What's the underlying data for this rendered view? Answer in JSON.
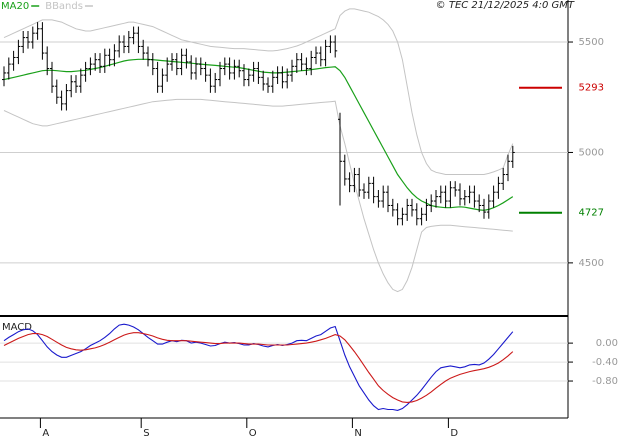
{
  "chart_data": {
    "type": "ohlc",
    "source": "© TEC 21/12/2025 4:0 GMT",
    "categories": [
      null,
      null,
      null,
      null,
      null,
      null,
      null,
      null,
      "A",
      null,
      null,
      null,
      null,
      null,
      null,
      null,
      null,
      null,
      null,
      null,
      null,
      null,
      null,
      null,
      null,
      null,
      null,
      null,
      null,
      "S",
      null,
      null,
      null,
      null,
      null,
      null,
      null,
      null,
      null,
      null,
      null,
      null,
      null,
      null,
      null,
      null,
      null,
      null,
      null,
      null,
      null,
      "O",
      null,
      null,
      null,
      null,
      null,
      null,
      null,
      null,
      null,
      null,
      null,
      null,
      null,
      null,
      null,
      null,
      null,
      null,
      null,
      null,
      null,
      "N",
      null,
      null,
      null,
      null,
      null,
      null,
      null,
      null,
      null,
      null,
      null,
      null,
      null,
      null,
      null,
      null,
      null,
      null,
      null,
      "D",
      null,
      null,
      null,
      null,
      null,
      null,
      null,
      null,
      null,
      null,
      null,
      null,
      null
    ],
    "bar_color": "#000000",
    "open": [
      5330,
      5360,
      5400,
      5430,
      5480,
      5520,
      5500,
      5540,
      5560,
      5450,
      5380,
      5300,
      5250,
      5220,
      5280,
      5320,
      5300,
      5350,
      5380,
      5400,
      5420,
      5390,
      5440,
      5420,
      5460,
      5500,
      5480,
      5520,
      5540,
      5480,
      5450,
      5420,
      5380,
      5300,
      5350,
      5400,
      5420,
      5380,
      5440,
      5410,
      5360,
      5400,
      5380,
      5350,
      5300,
      5330,
      5380,
      5400,
      5360,
      5390,
      5370,
      5330,
      5350,
      5380,
      5340,
      5310,
      5300,
      5340,
      5360,
      5320,
      5350,
      5390,
      5420,
      5400,
      5380,
      5430,
      5450,
      5420,
      5480,
      5500,
      5150,
      4960,
      4880,
      4850,
      4900,
      4830,
      4820,
      4860,
      4800,
      4780,
      4820,
      4760,
      4740,
      4700,
      4720,
      4760,
      4740,
      4700,
      4720,
      4760,
      4780,
      4800,
      4820,
      4780,
      4840,
      4830,
      4790,
      4800,
      4820,
      4780,
      4760,
      4730,
      4780,
      4820,
      4860,
      4900,
      4960
    ],
    "high": [
      5390,
      5430,
      5460,
      5510,
      5550,
      5550,
      5570,
      5590,
      5590,
      5480,
      5410,
      5330,
      5280,
      5310,
      5350,
      5350,
      5380,
      5410,
      5430,
      5450,
      5450,
      5470,
      5470,
      5490,
      5530,
      5530,
      5550,
      5570,
      5570,
      5510,
      5480,
      5450,
      5410,
      5380,
      5430,
      5450,
      5450,
      5470,
      5470,
      5440,
      5430,
      5430,
      5410,
      5380,
      5360,
      5410,
      5430,
      5430,
      5420,
      5420,
      5400,
      5380,
      5410,
      5410,
      5370,
      5340,
      5370,
      5390,
      5390,
      5380,
      5420,
      5450,
      5450,
      5430,
      5460,
      5480,
      5480,
      5510,
      5530,
      5530,
      5180,
      4990,
      4910,
      4930,
      4930,
      4860,
      4890,
      4890,
      4830,
      4850,
      4850,
      4790,
      4770,
      4750,
      4790,
      4790,
      4770,
      4750,
      4790,
      4810,
      4830,
      4850,
      4850,
      4870,
      4870,
      4860,
      4830,
      4850,
      4850,
      4810,
      4790,
      4810,
      4850,
      4890,
      4930,
      4990,
      5030
    ],
    "low": [
      5300,
      5330,
      5370,
      5400,
      5450,
      5470,
      5470,
      5510,
      5420,
      5350,
      5270,
      5220,
      5190,
      5190,
      5250,
      5270,
      5270,
      5320,
      5350,
      5370,
      5360,
      5360,
      5390,
      5390,
      5430,
      5450,
      5450,
      5490,
      5450,
      5420,
      5390,
      5350,
      5270,
      5270,
      5320,
      5370,
      5350,
      5350,
      5380,
      5330,
      5330,
      5350,
      5320,
      5270,
      5270,
      5300,
      5350,
      5330,
      5330,
      5340,
      5300,
      5300,
      5320,
      5310,
      5280,
      5270,
      5270,
      5310,
      5290,
      5290,
      5320,
      5360,
      5370,
      5350,
      5350,
      5400,
      5390,
      5390,
      5450,
      5430,
      4760,
      4850,
      4820,
      4820,
      4800,
      4790,
      4790,
      4770,
      4750,
      4750,
      4730,
      4710,
      4670,
      4670,
      4690,
      4710,
      4670,
      4670,
      4690,
      4730,
      4750,
      4770,
      4750,
      4750,
      4800,
      4760,
      4760,
      4770,
      4750,
      4730,
      4700,
      4700,
      4750,
      4790,
      4830,
      4870,
      4930
    ],
    "close": [
      5360,
      5400,
      5430,
      5480,
      5520,
      5500,
      5540,
      5560,
      5450,
      5380,
      5300,
      5250,
      5220,
      5280,
      5320,
      5300,
      5350,
      5380,
      5400,
      5420,
      5390,
      5440,
      5420,
      5460,
      5500,
      5480,
      5520,
      5540,
      5480,
      5450,
      5420,
      5380,
      5300,
      5350,
      5400,
      5420,
      5380,
      5440,
      5410,
      5360,
      5400,
      5380,
      5350,
      5300,
      5330,
      5380,
      5400,
      5360,
      5390,
      5370,
      5330,
      5350,
      5380,
      5340,
      5310,
      5300,
      5340,
      5360,
      5320,
      5350,
      5390,
      5420,
      5400,
      5380,
      5430,
      5450,
      5420,
      5480,
      5500,
      5460,
      4960,
      4880,
      4850,
      4900,
      4830,
      4820,
      4860,
      4800,
      4780,
      4820,
      4760,
      4740,
      4700,
      4720,
      4760,
      4740,
      4700,
      4720,
      4760,
      4780,
      4800,
      4820,
      4780,
      4840,
      4830,
      4790,
      4800,
      4820,
      4780,
      4760,
      4730,
      4780,
      4820,
      4860,
      4900,
      4960,
      5000
    ],
    "ylim": [
      4264,
      5645
    ],
    "yticks": [
      4500,
      5000,
      5500
    ],
    "grid": true,
    "overlays": [
      {
        "name": "MA20",
        "color": "#1aa01a",
        "values": [
          5330,
          5335,
          5340,
          5345,
          5350,
          5355,
          5360,
          5365,
          5370,
          5372,
          5372,
          5370,
          5368,
          5366,
          5366,
          5368,
          5370,
          5372,
          5376,
          5380,
          5384,
          5390,
          5396,
          5402,
          5408,
          5414,
          5418,
          5420,
          5422,
          5422,
          5422,
          5420,
          5418,
          5416,
          5414,
          5412,
          5410,
          5408,
          5406,
          5404,
          5402,
          5400,
          5398,
          5396,
          5394,
          5392,
          5390,
          5388,
          5386,
          5384,
          5380,
          5376,
          5372,
          5368,
          5364,
          5362,
          5360,
          5360,
          5362,
          5364,
          5366,
          5368,
          5370,
          5372,
          5375,
          5378,
          5381,
          5384,
          5386,
          5388,
          5370,
          5340,
          5300,
          5260,
          5220,
          5180,
          5140,
          5100,
          5060,
          5020,
          4980,
          4940,
          4900,
          4870,
          4840,
          4815,
          4795,
          4780,
          4770,
          4760,
          4755,
          4752,
          4750,
          4750,
          4752,
          4754,
          4752,
          4748,
          4744,
          4740,
          4738,
          4742,
          4750,
          4760,
          4772,
          4786,
          4800
        ]
      },
      {
        "name": "BBands",
        "color": "#c4c4c4",
        "upper": [
          5520,
          5530,
          5540,
          5550,
          5560,
          5570,
          5580,
          5590,
          5600,
          5600,
          5600,
          5595,
          5590,
          5580,
          5570,
          5560,
          5555,
          5550,
          5550,
          5555,
          5560,
          5565,
          5570,
          5575,
          5580,
          5585,
          5590,
          5590,
          5585,
          5580,
          5575,
          5570,
          5560,
          5550,
          5540,
          5530,
          5520,
          5510,
          5505,
          5500,
          5495,
          5490,
          5485,
          5480,
          5478,
          5476,
          5474,
          5472,
          5470,
          5470,
          5470,
          5468,
          5466,
          5464,
          5462,
          5460,
          5460,
          5462,
          5466,
          5470,
          5476,
          5482,
          5490,
          5500,
          5510,
          5520,
          5530,
          5540,
          5550,
          5560,
          5620,
          5640,
          5650,
          5650,
          5645,
          5640,
          5635,
          5625,
          5615,
          5600,
          5580,
          5550,
          5500,
          5420,
          5300,
          5180,
          5080,
          5000,
          4950,
          4920,
          4910,
          4905,
          4900,
          4900,
          4900,
          4900,
          4900,
          4900,
          4900,
          4900,
          4900,
          4905,
          4912,
          4920,
          4930,
          4990,
          5040
        ],
        "lower": [
          5190,
          5180,
          5170,
          5160,
          5150,
          5140,
          5130,
          5125,
          5120,
          5120,
          5125,
          5130,
          5135,
          5140,
          5145,
          5150,
          5155,
          5160,
          5165,
          5170,
          5175,
          5180,
          5185,
          5190,
          5195,
          5200,
          5205,
          5210,
          5215,
          5220,
          5225,
          5230,
          5232,
          5234,
          5236,
          5238,
          5240,
          5240,
          5240,
          5240,
          5240,
          5240,
          5238,
          5236,
          5234,
          5232,
          5230,
          5228,
          5226,
          5224,
          5222,
          5220,
          5218,
          5216,
          5214,
          5212,
          5210,
          5210,
          5210,
          5212,
          5214,
          5216,
          5218,
          5220,
          5222,
          5224,
          5226,
          5228,
          5230,
          5232,
          5120,
          5040,
          4950,
          4860,
          4780,
          4700,
          4630,
          4560,
          4500,
          4450,
          4410,
          4380,
          4370,
          4380,
          4420,
          4480,
          4560,
          4640,
          4660,
          4665,
          4668,
          4670,
          4670,
          4670,
          4668,
          4666,
          4664,
          4662,
          4660,
          4658,
          4656,
          4654,
          4652,
          4650,
          4648,
          4646,
          4644
        ]
      }
    ],
    "levels": [
      {
        "value": 5293,
        "color": "#cc0000"
      },
      {
        "value": 4727,
        "color": "#008000"
      }
    ],
    "macd": {
      "name": "MACD",
      "ylim": [
        -1.58,
        0.53
      ],
      "yticks": [
        {
          "value": 0,
          "label": "0.00"
        },
        {
          "value": -0.4,
          "label": "-0.40"
        },
        {
          "value": -0.8,
          "label": "-0.80"
        }
      ],
      "series": [
        {
          "color": "#1a1acc",
          "values": [
            0.05,
            0.12,
            0.18,
            0.24,
            0.28,
            0.3,
            0.26,
            0.18,
            0.05,
            -0.08,
            -0.18,
            -0.25,
            -0.3,
            -0.3,
            -0.26,
            -0.22,
            -0.18,
            -0.12,
            -0.05,
            0.0,
            0.05,
            0.12,
            0.2,
            0.3,
            0.38,
            0.4,
            0.38,
            0.34,
            0.28,
            0.2,
            0.12,
            0.05,
            -0.02,
            -0.02,
            0.02,
            0.05,
            0.03,
            0.06,
            0.05,
            0.0,
            0.02,
            0.0,
            -0.03,
            -0.06,
            -0.05,
            -0.01,
            0.02,
            0.0,
            0.01,
            -0.01,
            -0.04,
            -0.04,
            -0.01,
            -0.03,
            -0.06,
            -0.08,
            -0.05,
            -0.03,
            -0.05,
            -0.03,
            0.0,
            0.05,
            0.06,
            0.05,
            0.1,
            0.15,
            0.18,
            0.25,
            0.32,
            0.35,
            0.05,
            -0.25,
            -0.5,
            -0.7,
            -0.9,
            -1.05,
            -1.2,
            -1.32,
            -1.4,
            -1.38,
            -1.4,
            -1.4,
            -1.42,
            -1.38,
            -1.3,
            -1.2,
            -1.1,
            -0.98,
            -0.85,
            -0.72,
            -0.6,
            -0.52,
            -0.5,
            -0.48,
            -0.5,
            -0.52,
            -0.5,
            -0.46,
            -0.45,
            -0.46,
            -0.42,
            -0.34,
            -0.24,
            -0.12,
            0.0,
            0.12,
            0.24
          ]
        },
        {
          "color": "#cc1a1a",
          "values": [
            -0.05,
            0.0,
            0.05,
            0.1,
            0.14,
            0.18,
            0.2,
            0.2,
            0.18,
            0.14,
            0.08,
            0.02,
            -0.04,
            -0.09,
            -0.12,
            -0.14,
            -0.15,
            -0.14,
            -0.12,
            -0.1,
            -0.07,
            -0.03,
            0.02,
            0.07,
            0.12,
            0.17,
            0.2,
            0.22,
            0.22,
            0.2,
            0.18,
            0.15,
            0.11,
            0.08,
            0.06,
            0.05,
            0.05,
            0.05,
            0.05,
            0.04,
            0.03,
            0.02,
            0.01,
            0.0,
            -0.01,
            -0.01,
            0.0,
            0.0,
            0.0,
            0.0,
            -0.01,
            -0.02,
            -0.02,
            -0.02,
            -0.03,
            -0.04,
            -0.04,
            -0.04,
            -0.04,
            -0.04,
            -0.03,
            -0.02,
            -0.01,
            0.0,
            0.02,
            0.04,
            0.07,
            0.1,
            0.14,
            0.18,
            0.15,
            0.07,
            -0.05,
            -0.18,
            -0.32,
            -0.47,
            -0.62,
            -0.76,
            -0.9,
            -1.0,
            -1.08,
            -1.15,
            -1.2,
            -1.24,
            -1.25,
            -1.24,
            -1.21,
            -1.16,
            -1.1,
            -1.03,
            -0.95,
            -0.87,
            -0.8,
            -0.74,
            -0.7,
            -0.66,
            -0.63,
            -0.6,
            -0.58,
            -0.56,
            -0.54,
            -0.51,
            -0.47,
            -0.42,
            -0.35,
            -0.27,
            -0.18
          ]
        }
      ]
    }
  }
}
